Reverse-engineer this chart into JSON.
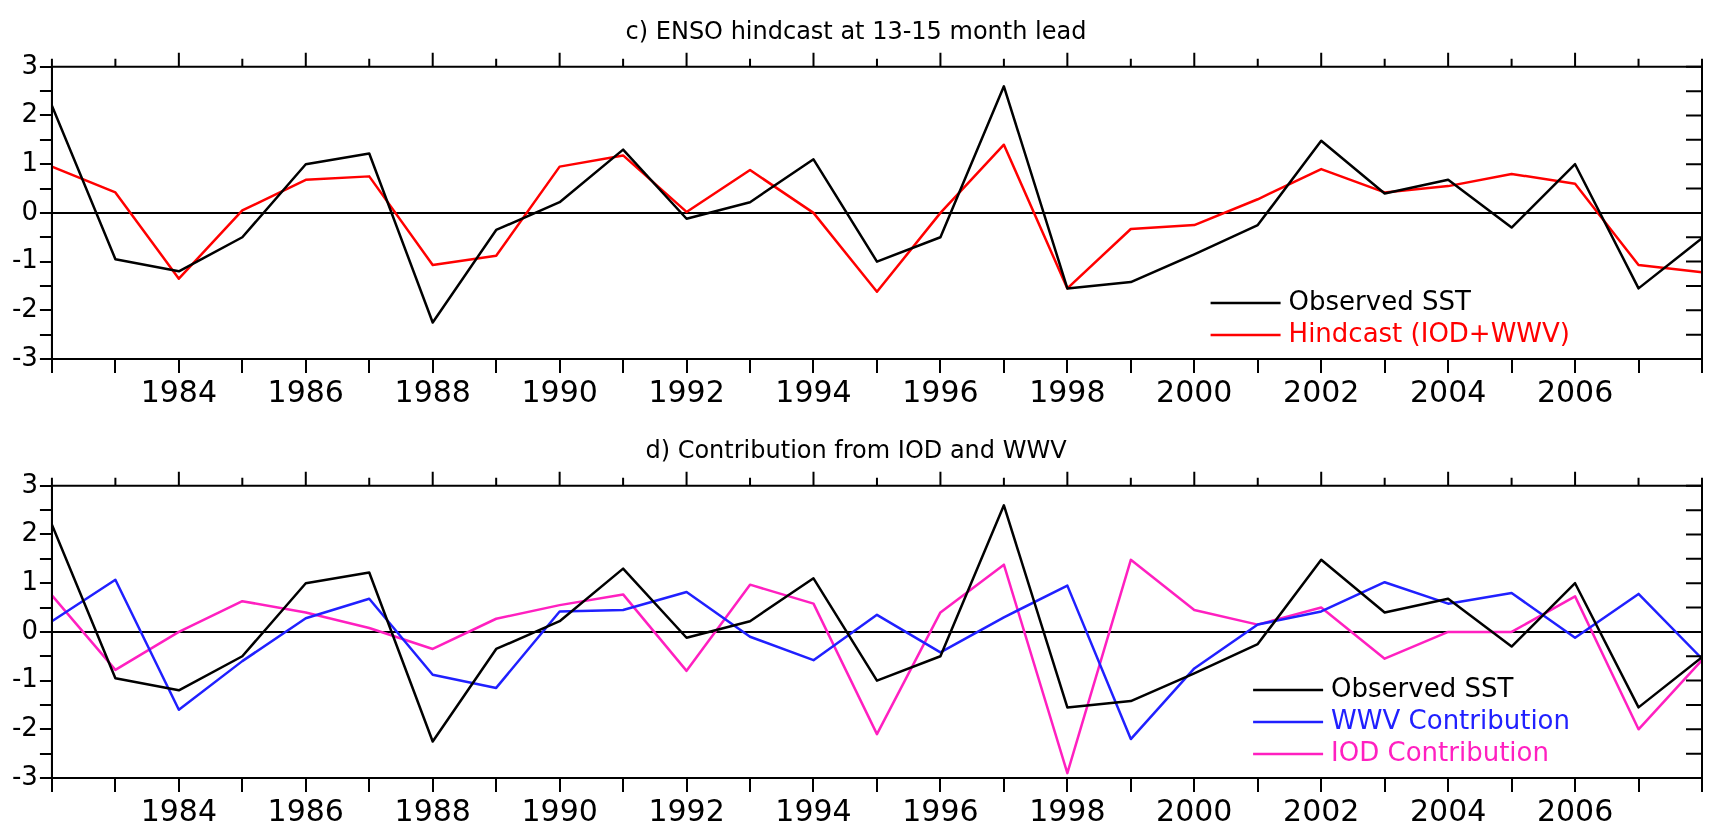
{
  "chart_data": [
    {
      "type": "line",
      "title": "c) ENSO hindcast at 13-15 month lead",
      "x": [
        1982,
        1983,
        1984,
        1985,
        1986,
        1987,
        1988,
        1989,
        1990,
        1991,
        1992,
        1993,
        1994,
        1995,
        1996,
        1997,
        1998,
        1999,
        2000,
        2001,
        2002,
        2003,
        2004,
        2005,
        2006,
        2007,
        2008
      ],
      "xlim": [
        1982,
        2008
      ],
      "xticks": [
        {
          "value": 1982,
          "label": null
        },
        {
          "value": 1983,
          "label": null
        },
        1984,
        {
          "value": 1985,
          "label": null
        },
        1986,
        {
          "value": 1987,
          "label": null
        },
        1988,
        {
          "value": 1989,
          "label": null
        },
        1990,
        {
          "value": 1991,
          "label": null
        },
        1992,
        {
          "value": 1993,
          "label": null
        },
        1994,
        {
          "value": 1995,
          "label": null
        },
        1996,
        {
          "value": 1997,
          "label": null
        },
        1998,
        {
          "value": 1999,
          "label": null
        },
        2000,
        {
          "value": 2001,
          "label": null
        },
        2002,
        {
          "value": 2003,
          "label": null
        },
        2004,
        {
          "value": 2005,
          "label": null
        },
        2006,
        {
          "value": 2007,
          "label": null
        },
        {
          "value": 2008,
          "label": null
        }
      ],
      "ylim": [
        -3,
        3
      ],
      "yticks": [
        -3,
        {
          "value": -2.5,
          "label": null
        },
        -2,
        {
          "value": -1.5,
          "label": null
        },
        -1,
        {
          "value": -0.5,
          "label": null
        },
        0,
        {
          "value": 0.5,
          "label": null
        },
        1,
        {
          "value": 1.5,
          "label": null
        },
        2,
        {
          "value": 2.5,
          "label": null
        },
        3
      ],
      "series": [
        {
          "name": "Observed SST",
          "color": "#000000",
          "values": [
            2.2,
            -0.95,
            -1.2,
            -0.5,
            1.0,
            1.22,
            -2.25,
            -0.35,
            0.22,
            1.3,
            -0.12,
            0.22,
            1.1,
            -1.0,
            -0.5,
            2.6,
            -1.55,
            -1.42,
            -0.85,
            -0.25,
            1.48,
            0.4,
            0.68,
            -0.3,
            1.0,
            -1.55,
            -0.52
          ]
        },
        {
          "name": "Hindcast (IOD+WWV)",
          "color": "#ff0000",
          "values": [
            0.95,
            0.42,
            -1.35,
            0.05,
            0.68,
            0.75,
            -1.07,
            -0.88,
            0.95,
            1.18,
            0.02,
            0.88,
            0.0,
            -1.62,
            0.0,
            1.4,
            -1.55,
            -0.33,
            -0.25,
            0.28,
            0.9,
            0.42,
            0.55,
            0.8,
            0.6,
            -1.07,
            -1.22
          ]
        }
      ],
      "ref_lines": [
        {
          "axis": "y",
          "value": 0,
          "color": "#000000"
        }
      ],
      "grid": false,
      "legend": "bottom right",
      "marker": "none",
      "line_style": "solid"
    },
    {
      "type": "line",
      "title": "d) Contribution from IOD and WWV",
      "x": [
        1982,
        1983,
        1984,
        1985,
        1986,
        1987,
        1988,
        1989,
        1990,
        1991,
        1992,
        1993,
        1994,
        1995,
        1996,
        1997,
        1998,
        1999,
        2000,
        2001,
        2002,
        2003,
        2004,
        2005,
        2006,
        2007,
        2008
      ],
      "xlim": [
        1982,
        2008
      ],
      "xticks": [
        {
          "value": 1982,
          "label": null
        },
        {
          "value": 1983,
          "label": null
        },
        1984,
        {
          "value": 1985,
          "label": null
        },
        1986,
        {
          "value": 1987,
          "label": null
        },
        1988,
        {
          "value": 1989,
          "label": null
        },
        1990,
        {
          "value": 1991,
          "label": null
        },
        1992,
        {
          "value": 1993,
          "label": null
        },
        1994,
        {
          "value": 1995,
          "label": null
        },
        1996,
        {
          "value": 1997,
          "label": null
        },
        1998,
        {
          "value": 1999,
          "label": null
        },
        2000,
        {
          "value": 2001,
          "label": null
        },
        2002,
        {
          "value": 2003,
          "label": null
        },
        2004,
        {
          "value": 2005,
          "label": null
        },
        2006,
        {
          "value": 2007,
          "label": null
        },
        {
          "value": 2008,
          "label": null
        }
      ],
      "ylim": [
        -3,
        3
      ],
      "yticks": [
        -3,
        {
          "value": -2.5,
          "label": null
        },
        -2,
        {
          "value": -1.5,
          "label": null
        },
        -1,
        {
          "value": -0.5,
          "label": null
        },
        0,
        {
          "value": 0.5,
          "label": null
        },
        1,
        {
          "value": 1.5,
          "label": null
        },
        2,
        {
          "value": 2.5,
          "label": null
        },
        3
      ],
      "series": [
        {
          "name": "Observed SST",
          "color": "#000000",
          "values": [
            2.2,
            -0.95,
            -1.2,
            -0.5,
            1.0,
            1.22,
            -2.25,
            -0.35,
            0.22,
            1.3,
            -0.12,
            0.22,
            1.1,
            -1.0,
            -0.5,
            2.6,
            -1.55,
            -1.42,
            -0.85,
            -0.25,
            1.48,
            0.4,
            0.68,
            -0.3,
            1.0,
            -1.55,
            -0.52
          ]
        },
        {
          "name": "WWV Contribution",
          "color": "#2020ff",
          "values": [
            0.22,
            1.07,
            -1.6,
            -0.6,
            0.28,
            0.68,
            -0.88,
            -1.15,
            0.42,
            0.45,
            0.82,
            -0.1,
            -0.58,
            0.35,
            -0.42,
            0.3,
            0.95,
            -2.2,
            -0.75,
            0.15,
            0.42,
            1.02,
            0.58,
            0.8,
            -0.12,
            0.78,
            -0.55
          ]
        },
        {
          "name": "IOD Contribution",
          "color": "#ff20c0",
          "values": [
            0.75,
            -0.78,
            0.0,
            0.63,
            0.4,
            0.08,
            -0.35,
            0.27,
            0.55,
            0.77,
            -0.8,
            0.97,
            0.58,
            -2.1,
            0.4,
            1.38,
            -2.9,
            1.48,
            0.45,
            0.15,
            0.5,
            -0.55,
            0.0,
            0.0,
            0.73,
            -2.0,
            -0.58
          ]
        }
      ],
      "ref_lines": [
        {
          "axis": "y",
          "value": 0,
          "color": "#000000"
        }
      ],
      "grid": false,
      "legend": "bottom right",
      "marker": "none",
      "line_style": "solid"
    }
  ]
}
